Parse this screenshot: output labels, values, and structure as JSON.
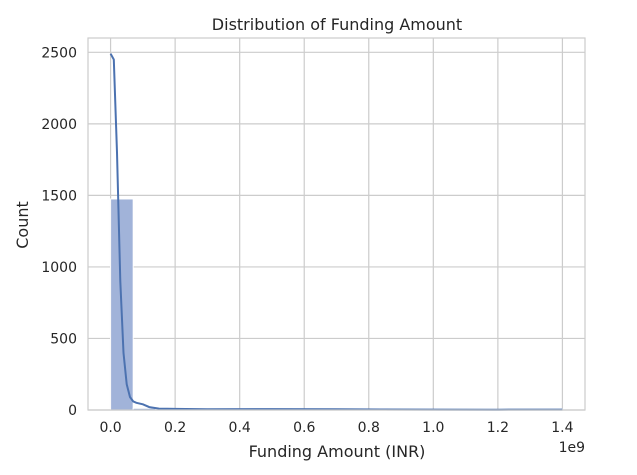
{
  "chart_data": {
    "type": "bar",
    "title": "Distribution of Funding Amount",
    "xlabel": "Funding Amount (INR)",
    "ylabel": "Count",
    "x_offset_label": "1e9",
    "xlim": [
      -0.07,
      1.47
    ],
    "ylim": [
      0,
      2600
    ],
    "x_ticks": [
      0.0,
      0.2,
      0.4,
      0.6,
      0.8,
      1.0,
      1.2,
      1.4
    ],
    "x_tick_labels": [
      "0.0",
      "0.2",
      "0.4",
      "0.6",
      "0.8",
      "1.0",
      "1.2",
      "1.4"
    ],
    "y_ticks": [
      0,
      500,
      1000,
      1500,
      2000,
      2500
    ],
    "y_tick_labels": [
      "0",
      "500",
      "1000",
      "1500",
      "2000",
      "2500"
    ],
    "grid": true,
    "bin_width": 0.07,
    "bins": [
      {
        "x0": 0.0,
        "x1": 0.07,
        "count": 1475
      },
      {
        "x0": 0.07,
        "x1": 0.14,
        "count": 12
      },
      {
        "x0": 0.14,
        "x1": 0.21,
        "count": 5
      },
      {
        "x0": 0.21,
        "x1": 0.28,
        "count": 3
      },
      {
        "x0": 0.28,
        "x1": 0.35,
        "count": 1
      },
      {
        "x0": 0.35,
        "x1": 0.42,
        "count": 1
      },
      {
        "x0": 0.42,
        "x1": 0.49,
        "count": 1
      },
      {
        "x0": 0.49,
        "x1": 0.56,
        "count": 2
      },
      {
        "x0": 0.56,
        "x1": 0.63,
        "count": 0
      },
      {
        "x0": 0.63,
        "x1": 0.7,
        "count": 1
      },
      {
        "x0": 0.7,
        "x1": 0.77,
        "count": 1
      },
      {
        "x0": 0.77,
        "x1": 0.84,
        "count": 0
      },
      {
        "x0": 0.84,
        "x1": 0.91,
        "count": 0
      },
      {
        "x0": 0.91,
        "x1": 0.98,
        "count": 0
      },
      {
        "x0": 0.98,
        "x1": 1.05,
        "count": 0
      },
      {
        "x0": 1.05,
        "x1": 1.12,
        "count": 0
      },
      {
        "x0": 1.12,
        "x1": 1.19,
        "count": 0
      },
      {
        "x0": 1.19,
        "x1": 1.26,
        "count": 0
      },
      {
        "x0": 1.26,
        "x1": 1.33,
        "count": 0
      },
      {
        "x0": 1.33,
        "x1": 1.4,
        "count": 1
      }
    ],
    "kde": {
      "x": [
        0.0,
        0.01,
        0.02,
        0.03,
        0.04,
        0.05,
        0.06,
        0.07,
        0.08,
        0.1,
        0.12,
        0.15,
        0.2,
        0.3,
        0.5,
        0.7,
        1.0,
        1.2,
        1.4
      ],
      "y": [
        2490,
        2450,
        1800,
        900,
        400,
        180,
        90,
        60,
        50,
        40,
        20,
        10,
        8,
        5,
        6,
        5,
        3,
        2,
        3
      ]
    },
    "colors": {
      "bar_fill": "#a1b3d9",
      "bar_edge": "#ffffff",
      "kde_line": "#4c72b0",
      "grid": "#cccccc",
      "text": "#262626"
    }
  }
}
